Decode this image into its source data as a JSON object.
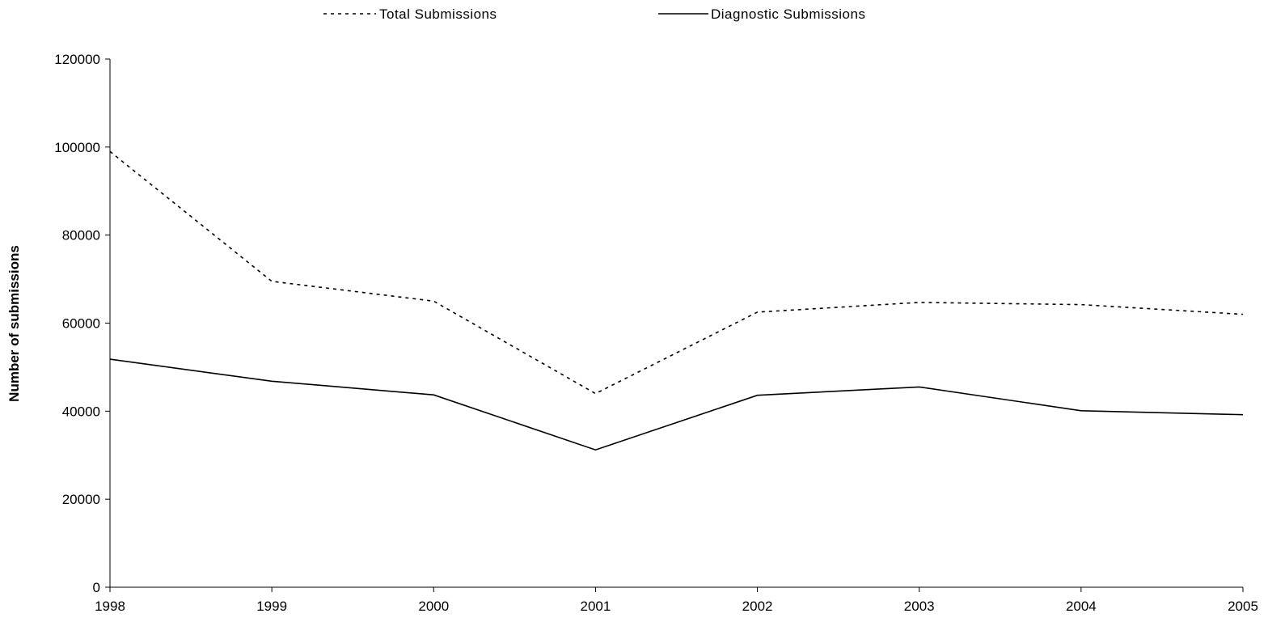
{
  "chart_data": {
    "type": "line",
    "title": "",
    "xlabel": "",
    "ylabel": "Number of submissions",
    "categories": [
      "1998",
      "1999",
      "2000",
      "2001",
      "2002",
      "2003",
      "2004",
      "2005"
    ],
    "ylim": [
      0,
      120000
    ],
    "yticks": [
      "0",
      "20000",
      "40000",
      "60000",
      "80000",
      "100000",
      "120000"
    ],
    "grid": false,
    "legend_position": "top",
    "series": [
      {
        "name": "Total Submissions",
        "line_style": "dotted",
        "color": "#000000",
        "values": [
          99000,
          69500,
          65000,
          44000,
          62500,
          64700,
          64200,
          62000
        ]
      },
      {
        "name": "Diagnostic Submissions",
        "line_style": "solid",
        "color": "#000000",
        "values": [
          51800,
          46800,
          43700,
          31200,
          43600,
          45500,
          40100,
          39200
        ]
      }
    ]
  }
}
